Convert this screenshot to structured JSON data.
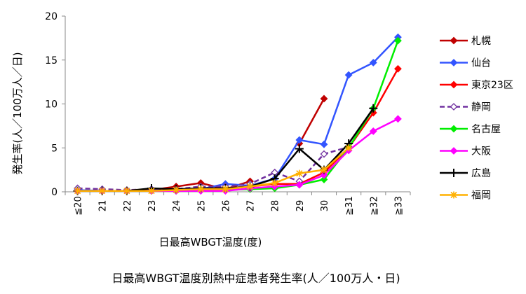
{
  "chart_data": {
    "type": "line",
    "title": "日最高WBGT温度別熱中症患者発生率(人／100万人・日)",
    "xlabel": "日最高WBGT温度(度)",
    "ylabel": "発生率(人／100万人／日)",
    "categories": [
      "≦20",
      "21",
      "22",
      "23",
      "24",
      "25",
      "26",
      "27",
      "28",
      "29",
      "30",
      "≧31",
      "≧32",
      "≧33"
    ],
    "ylim": [
      0,
      20
    ],
    "yticks": [
      0,
      5,
      10,
      15,
      20
    ],
    "grid": false,
    "legend_position": "right",
    "series": [
      {
        "name": "札幌",
        "color": "#c00000",
        "marker": "diamond",
        "dashed": false,
        "values": [
          0.1,
          0.1,
          0.1,
          0.2,
          0.6,
          1.0,
          0.3,
          1.2,
          null,
          5.5,
          10.6,
          null,
          null,
          null
        ]
      },
      {
        "name": "仙台",
        "color": "#3355ff",
        "marker": "diamond",
        "dashed": false,
        "values": [
          0.2,
          0.1,
          0.1,
          0.1,
          0.1,
          0.3,
          0.9,
          0.7,
          1.5,
          5.9,
          5.4,
          13.3,
          14.7,
          17.6
        ]
      },
      {
        "name": "東京23区",
        "color": "#ff0000",
        "marker": "diamond",
        "dashed": false,
        "values": [
          0.1,
          0.1,
          0.1,
          0.1,
          0.2,
          0.3,
          0.4,
          0.6,
          0.9,
          0.9,
          2.2,
          5.0,
          9.0,
          14.0
        ]
      },
      {
        "name": "静岡",
        "color": "#7030a0",
        "marker": "diamond-open",
        "dashed": true,
        "values": [
          0.4,
          0.3,
          0.2,
          0.3,
          0.3,
          0.6,
          0.6,
          0.9,
          2.2,
          1.2,
          4.3,
          5.1,
          null,
          null
        ]
      },
      {
        "name": "名古屋",
        "color": "#00ee00",
        "marker": "diamond",
        "dashed": false,
        "values": [
          0.1,
          0.1,
          0.1,
          0.1,
          0.1,
          0.2,
          0.2,
          0.3,
          0.4,
          0.8,
          1.4,
          5.0,
          9.5,
          17.2
        ]
      },
      {
        "name": "大阪",
        "color": "#ff00ff",
        "marker": "diamond",
        "dashed": false,
        "values": [
          0.1,
          0.1,
          0.1,
          0.1,
          0.1,
          0.1,
          0.1,
          0.4,
          0.6,
          0.8,
          1.9,
          4.7,
          6.9,
          8.3
        ]
      },
      {
        "name": "広島",
        "color": "#000000",
        "marker": "plus",
        "dashed": false,
        "values": [
          0.1,
          0.1,
          0.1,
          0.4,
          0.3,
          0.4,
          0.4,
          0.6,
          1.5,
          4.9,
          2.5,
          5.5,
          9.5,
          null
        ]
      },
      {
        "name": "福岡",
        "color": "#ffb000",
        "marker": "star",
        "dashed": false,
        "values": [
          0.1,
          0.1,
          0.1,
          0.1,
          0.2,
          0.3,
          0.3,
          0.6,
          1.0,
          2.1,
          2.5,
          5.0,
          null,
          null
        ]
      }
    ]
  }
}
